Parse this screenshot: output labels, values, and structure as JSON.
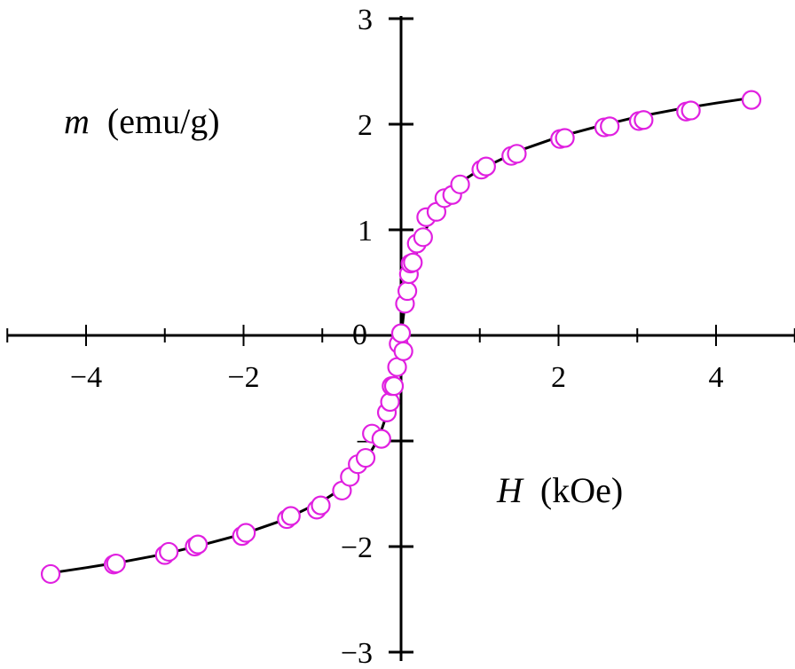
{
  "colors": {
    "axis": "#000000",
    "curve": "#000000",
    "marker": "#e020e0",
    "background": "#ffffff"
  },
  "chart_data": {
    "type": "scatter",
    "title": "",
    "xlabel_symbol": "H",
    "xlabel_unit": "(kOe)",
    "ylabel_symbol": "m",
    "ylabel_unit": "(emu/g)",
    "xlim": [
      -5,
      5
    ],
    "ylim": [
      -3,
      3
    ],
    "grid": false,
    "legend": "none",
    "x_ticks": [
      -4,
      -2,
      2,
      4
    ],
    "x_tick_labels": [
      "−4",
      "−2",
      "2",
      "4"
    ],
    "y_ticks": [
      -3,
      -2,
      -1,
      1,
      2,
      3
    ],
    "y_tick_labels": [
      "−3",
      "−2",
      "−",
      "1",
      "2",
      "3"
    ],
    "origin_label": "0",
    "series": [
      {
        "type": "scatter",
        "x": [
          -4.45,
          -3.65,
          -3.62,
          -3.0,
          -2.95,
          -2.62,
          -2.58,
          -2.02,
          -1.97,
          -1.45,
          -1.4,
          -1.07,
          -1.02,
          -0.75,
          -0.65,
          -0.55,
          -0.45,
          -0.37,
          -0.25,
          -0.18,
          -0.14,
          -0.12,
          -0.09,
          -0.05,
          -0.03,
          0.0,
          0.03,
          0.05,
          0.08,
          0.1,
          0.12,
          0.15,
          0.2,
          0.28,
          0.32,
          0.45,
          0.55,
          0.65,
          0.75,
          1.02,
          1.08,
          1.4,
          1.47,
          2.02,
          2.08,
          2.58,
          2.65,
          3.02,
          3.08,
          3.62,
          3.68,
          4.45
        ],
        "y": [
          -2.26,
          -2.17,
          -2.16,
          -2.08,
          -2.05,
          -2.0,
          -1.98,
          -1.9,
          -1.87,
          -1.74,
          -1.71,
          -1.65,
          -1.61,
          -1.47,
          -1.34,
          -1.22,
          -1.16,
          -0.93,
          -0.98,
          -0.73,
          -0.63,
          -0.48,
          -0.48,
          -0.3,
          -0.08,
          0.02,
          -0.15,
          0.3,
          0.42,
          0.58,
          0.68,
          0.69,
          0.87,
          0.93,
          1.12,
          1.17,
          1.3,
          1.33,
          1.43,
          1.57,
          1.6,
          1.7,
          1.72,
          1.86,
          1.87,
          1.97,
          1.98,
          2.03,
          2.04,
          2.12,
          2.13,
          2.23
        ]
      },
      {
        "type": "line",
        "x": [
          -4.45,
          -4.0,
          -3.5,
          -3.0,
          -2.5,
          -2.0,
          -1.5,
          -1.0,
          -0.75,
          -0.5,
          -0.35,
          -0.25,
          -0.15,
          -0.1,
          -0.05,
          -0.02,
          0.0,
          0.02,
          0.05,
          0.1,
          0.15,
          0.25,
          0.35,
          0.5,
          0.75,
          1.0,
          1.5,
          2.0,
          2.5,
          3.0,
          3.5,
          4.0,
          4.45
        ],
        "y": [
          -2.25,
          -2.2,
          -2.14,
          -2.07,
          -1.98,
          -1.88,
          -1.75,
          -1.57,
          -1.45,
          -1.24,
          -1.06,
          -0.9,
          -0.68,
          -0.52,
          -0.3,
          -0.12,
          0.0,
          0.12,
          0.3,
          0.52,
          0.68,
          0.9,
          1.06,
          1.24,
          1.45,
          1.57,
          1.75,
          1.88,
          1.98,
          2.07,
          2.14,
          2.2,
          2.25
        ]
      }
    ]
  }
}
